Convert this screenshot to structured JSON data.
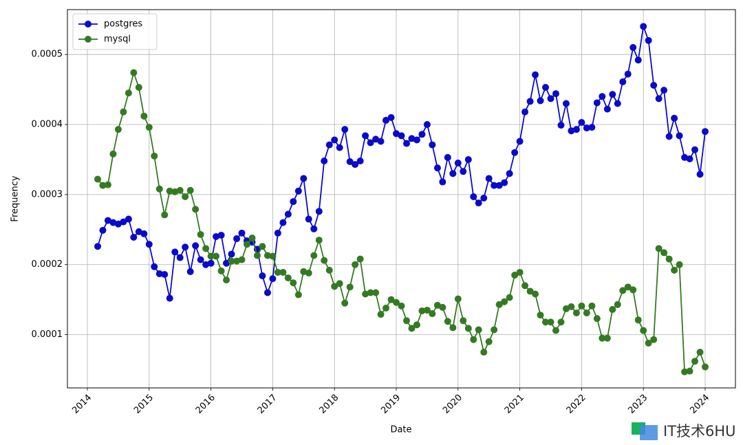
{
  "chart_data": {
    "type": "line",
    "x_label": "Date",
    "y_label": "Frequency",
    "x": [
      2014.167,
      2014.25,
      2014.333,
      2014.417,
      2014.5,
      2014.583,
      2014.667,
      2014.75,
      2014.833,
      2014.917,
      2015,
      2015.083,
      2015.167,
      2015.25,
      2015.333,
      2015.417,
      2015.5,
      2015.583,
      2015.667,
      2015.75,
      2015.833,
      2015.917,
      2016,
      2016.083,
      2016.167,
      2016.25,
      2016.333,
      2016.417,
      2016.5,
      2016.583,
      2016.667,
      2016.75,
      2016.833,
      2016.917,
      2017,
      2017.083,
      2017.167,
      2017.25,
      2017.333,
      2017.417,
      2017.5,
      2017.583,
      2017.667,
      2017.75,
      2017.833,
      2017.917,
      2018,
      2018.083,
      2018.167,
      2018.25,
      2018.333,
      2018.417,
      2018.5,
      2018.583,
      2018.667,
      2018.75,
      2018.833,
      2018.917,
      2019,
      2019.083,
      2019.167,
      2019.25,
      2019.333,
      2019.417,
      2019.5,
      2019.583,
      2019.667,
      2019.75,
      2019.833,
      2019.917,
      2020,
      2020.083,
      2020.167,
      2020.25,
      2020.333,
      2020.417,
      2020.5,
      2020.583,
      2020.667,
      2020.75,
      2020.833,
      2020.917,
      2021,
      2021.083,
      2021.167,
      2021.25,
      2021.333,
      2021.417,
      2021.5,
      2021.583,
      2021.667,
      2021.75,
      2021.833,
      2021.917,
      2022,
      2022.083,
      2022.167,
      2022.25,
      2022.333,
      2022.417,
      2022.5,
      2022.583,
      2022.667,
      2022.75,
      2022.833,
      2022.917,
      2023,
      2023.083,
      2023.167,
      2023.25,
      2023.333,
      2023.417,
      2023.5,
      2023.583,
      2023.667,
      2023.75,
      2023.833,
      2023.917,
      2024
    ],
    "series": [
      {
        "name": "postgres",
        "color": "#0a0acc",
        "values": [
          0.000226,
          0.000249,
          0.000263,
          0.00026,
          0.000258,
          0.000261,
          0.000265,
          0.000239,
          0.000247,
          0.000244,
          0.000229,
          0.000197,
          0.000187,
          0.000186,
          0.000152,
          0.000218,
          0.00021,
          0.000225,
          0.00019,
          0.000227,
          0.000207,
          0.0002,
          0.000202,
          0.00024,
          0.000242,
          0.000202,
          0.000215,
          0.000237,
          0.000245,
          0.000234,
          0.000232,
          0.000222,
          0.000184,
          0.00016,
          0.00018,
          0.000245,
          0.00026,
          0.000272,
          0.00029,
          0.000305,
          0.000323,
          0.000265,
          0.000251,
          0.000276,
          0.000348,
          0.000371,
          0.000378,
          0.000367,
          0.000393,
          0.000347,
          0.000343,
          0.000348,
          0.000384,
          0.000374,
          0.000379,
          0.000376,
          0.000406,
          0.00041,
          0.000387,
          0.000384,
          0.000373,
          0.00038,
          0.000378,
          0.000386,
          0.0004,
          0.000371,
          0.000338,
          0.000318,
          0.000353,
          0.00033,
          0.000345,
          0.000333,
          0.00035,
          0.000297,
          0.000288,
          0.000295,
          0.000323,
          0.000313,
          0.000313,
          0.000317,
          0.00033,
          0.00036,
          0.000376,
          0.000418,
          0.000433,
          0.000471,
          0.000434,
          0.000453,
          0.000437,
          0.000444,
          0.000399,
          0.00043,
          0.000391,
          0.000393,
          0.000403,
          0.000395,
          0.000396,
          0.000431,
          0.00044,
          0.000422,
          0.000443,
          0.00043,
          0.000461,
          0.000472,
          0.00051,
          0.000492,
          0.00054,
          0.00052,
          0.000456,
          0.000437,
          0.000449,
          0.000383,
          0.000409,
          0.000384,
          0.000353,
          0.000351,
          0.000364,
          0.000329,
          0.00039
        ]
      },
      {
        "name": "mysql",
        "color": "#347a22",
        "values": [
          0.000322,
          0.000313,
          0.000314,
          0.000358,
          0.000393,
          0.000418,
          0.000445,
          0.000474,
          0.000453,
          0.000412,
          0.000396,
          0.000355,
          0.000308,
          0.000271,
          0.000305,
          0.000304,
          0.000306,
          0.000297,
          0.000306,
          0.000279,
          0.000243,
          0.000223,
          0.000212,
          0.000212,
          0.000191,
          0.000178,
          0.000205,
          0.000205,
          0.000207,
          0.000229,
          0.000238,
          0.000213,
          0.000226,
          0.000213,
          0.000212,
          0.000189,
          0.000189,
          0.000181,
          0.000174,
          0.000157,
          0.00019,
          0.000188,
          0.000213,
          0.000235,
          0.000206,
          0.000192,
          0.000169,
          0.000173,
          0.000145,
          0.000168,
          0.0002,
          0.000208,
          0.000158,
          0.00016,
          0.00016,
          0.000129,
          0.000138,
          0.00015,
          0.000146,
          0.000141,
          0.00012,
          0.000109,
          0.000114,
          0.000134,
          0.000135,
          0.00013,
          0.000142,
          0.000139,
          0.000119,
          0.00011,
          0.000151,
          0.00012,
          0.000109,
          9.3e-05,
          0.000107,
          7.5e-05,
          9e-05,
          0.000107,
          0.000143,
          0.000147,
          0.000153,
          0.000185,
          0.000189,
          0.00017,
          0.000162,
          0.000158,
          0.000128,
          0.000118,
          0.000118,
          0.000106,
          0.000118,
          0.000137,
          0.00014,
          0.000131,
          0.000141,
          0.000131,
          0.000141,
          0.000123,
          9.5e-05,
          9.5e-05,
          0.000136,
          0.000143,
          0.000163,
          0.000168,
          0.000164,
          0.000121,
          0.000106,
          8.8e-05,
          9.3e-05,
          0.000223,
          0.000217,
          0.000208,
          0.000192,
          0.0002,
          4.7e-05,
          4.8e-05,
          6.2e-05,
          7.5e-05,
          5.4e-05
        ]
      }
    ],
    "xlim": [
      2013.677,
      2024.49
    ],
    "xticks": [
      2014,
      2015,
      2016,
      2017,
      2018,
      2019,
      2020,
      2021,
      2022,
      2023,
      2024
    ],
    "ylim": [
      2.4e-05,
      0.000564
    ],
    "yticks": [
      0.0001,
      0.0002,
      0.0003,
      0.0004,
      0.0005
    ],
    "grid": true,
    "legend": "upper left",
    "watermark": "IT技术6HU"
  }
}
